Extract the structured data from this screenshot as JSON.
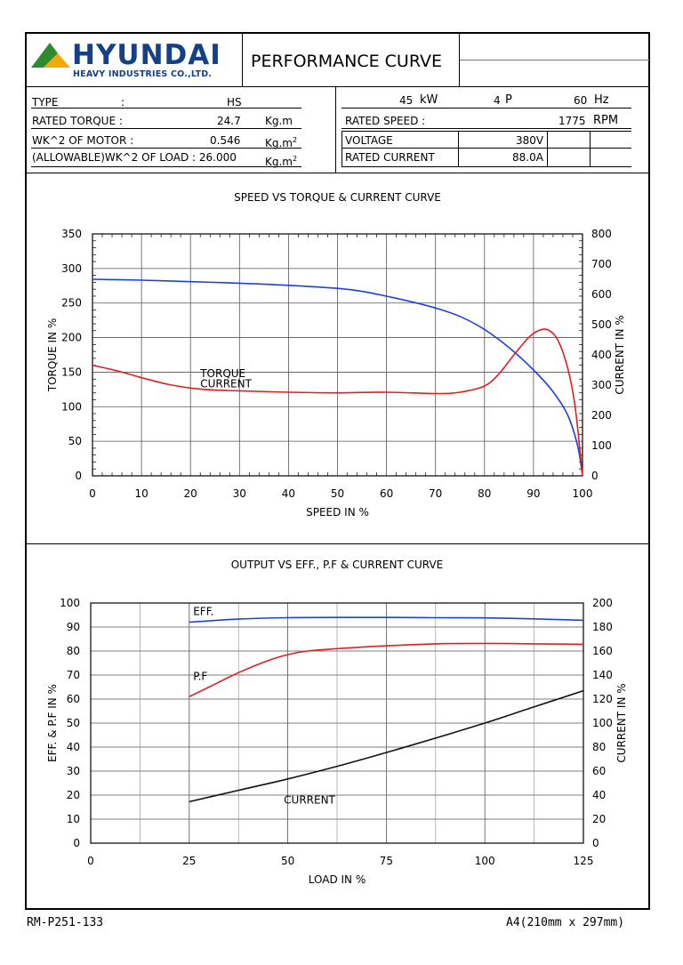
{
  "header": {
    "logo_word": "HYUNDAI",
    "logo_sub": "HEAVY INDUSTRIES CO.,LTD.",
    "title": "PERFORMANCE CURVE",
    "brand_color": "#14408a",
    "triangle_colors": [
      "#2e8b2e",
      "#f2a900"
    ]
  },
  "spec": {
    "left": [
      {
        "label": "TYPE",
        "sep": ":",
        "value": "HS",
        "unit": ""
      },
      {
        "label": "RATED TORQUE :",
        "sep": "",
        "value": "24.7",
        "unit": "Kg.m"
      },
      {
        "label": "WK^2 OF MOTOR :",
        "sep": "",
        "value": "0.546",
        "unit": "Kg.m",
        "unit_sup": "2"
      },
      {
        "label": "(ALLOWABLE)WK^2 OF LOAD : 26.000",
        "sep": "",
        "value": "",
        "unit": "Kg.m",
        "unit_sup": "2"
      }
    ],
    "power": {
      "value": "45",
      "unit": "kW"
    },
    "poles": {
      "value": "4",
      "unit": "P"
    },
    "freq": {
      "value": "60",
      "unit": "Hz"
    },
    "rated_speed": {
      "label": "RATED SPEED :",
      "value": "1775",
      "unit": "RPM"
    },
    "voltage": {
      "label": "VOLTAGE",
      "value": "380V"
    },
    "rated_current": {
      "label": "RATED CURRENT",
      "value": "88.0A"
    }
  },
  "footer": {
    "doc_no": "RM-P251-133",
    "paper": "A4(210mm x 297mm)"
  },
  "chart_data": [
    {
      "type": "line",
      "title": "SPEED VS TORQUE & CURRENT CURVE",
      "xlabel": "SPEED IN %",
      "ylabel": "TORQUE IN %",
      "y2label": "CURRENT IN %",
      "xlim": [
        0,
        100
      ],
      "ylim": [
        0,
        350
      ],
      "y2lim": [
        0,
        800
      ],
      "xticks": [
        0,
        10,
        20,
        30,
        40,
        50,
        60,
        70,
        80,
        90,
        100
      ],
      "yticks": [
        0,
        50,
        100,
        150,
        200,
        250,
        300,
        350
      ],
      "y2ticks": [
        0,
        100,
        200,
        300,
        400,
        500,
        600,
        700,
        800
      ],
      "grid": true,
      "series": [
        {
          "name": "CURRENT",
          "axis": "y2",
          "color": "#1f3fe0",
          "x": [
            0,
            10,
            20,
            30,
            40,
            50,
            55,
            60,
            65,
            70,
            75,
            80,
            85,
            90,
            94,
            97,
            99,
            100
          ],
          "values": [
            650,
            647,
            642,
            637,
            630,
            620,
            610,
            594,
            576,
            555,
            527,
            484,
            424,
            350,
            278,
            200,
            100,
            0
          ],
          "label": "CURRENT",
          "label_pos": [
            22,
            292
          ]
        },
        {
          "name": "TORQUE",
          "axis": "y",
          "color": "#e01f1f",
          "x": [
            0,
            5,
            10,
            15,
            20,
            25,
            30,
            40,
            50,
            60,
            70,
            75,
            80,
            83,
            86,
            89,
            91,
            93,
            95,
            97,
            98.5,
            100
          ],
          "values": [
            160,
            152,
            142,
            133,
            127,
            124,
            123,
            121,
            120,
            121,
            119,
            121,
            130,
            148,
            175,
            200,
            210,
            211,
            196,
            155,
            100,
            0
          ],
          "label": "TORQUE",
          "label_pos": [
            22,
            143
          ]
        }
      ]
    },
    {
      "type": "line",
      "title": "OUTPUT VS EFF., P.F & CURRENT CURVE",
      "xlabel": "LOAD IN %",
      "ylabel": "EFF. & P.F IN %",
      "y2label": "CURRENT IN %",
      "xlim": [
        0,
        125
      ],
      "ylim": [
        0,
        100
      ],
      "y2lim": [
        0,
        200
      ],
      "xticks": [
        0,
        25,
        50,
        75,
        100,
        125
      ],
      "yticks": [
        0,
        10,
        20,
        30,
        40,
        50,
        60,
        70,
        80,
        90,
        100
      ],
      "y2ticks": [
        0,
        20,
        40,
        60,
        80,
        100,
        120,
        140,
        160,
        180,
        200
      ],
      "grid": true,
      "series": [
        {
          "name": "EFF.",
          "axis": "y",
          "color": "#1f3fe0",
          "x": [
            25,
            37.5,
            50,
            62.5,
            75,
            87.5,
            100,
            112.5,
            125
          ],
          "values": [
            92.0,
            93.3,
            93.9,
            94.0,
            94.0,
            93.9,
            93.8,
            93.4,
            92.8
          ],
          "label": "EFF.",
          "label_pos": [
            26,
            95
          ]
        },
        {
          "name": "P.F",
          "axis": "y",
          "color": "#e01f1f",
          "x": [
            25,
            30,
            37.5,
            45,
            50,
            55,
            62.5,
            75,
            87.5,
            100,
            112.5,
            125
          ],
          "values": [
            61,
            65,
            71,
            76,
            78.5,
            80,
            81,
            82.2,
            83,
            83.2,
            83,
            82.8
          ],
          "label": "P.F",
          "label_pos": [
            26,
            68
          ]
        },
        {
          "name": "CURRENT",
          "axis": "y2",
          "color": "#111111",
          "x": [
            25,
            37.5,
            50,
            62.5,
            75,
            87.5,
            100,
            112.5,
            125
          ],
          "values": [
            34.5,
            44,
            53.5,
            64,
            75.5,
            87.5,
            100,
            113.5,
            127
          ],
          "label": "CURRENT",
          "label_pos": [
            49,
            33
          ]
        }
      ]
    }
  ]
}
